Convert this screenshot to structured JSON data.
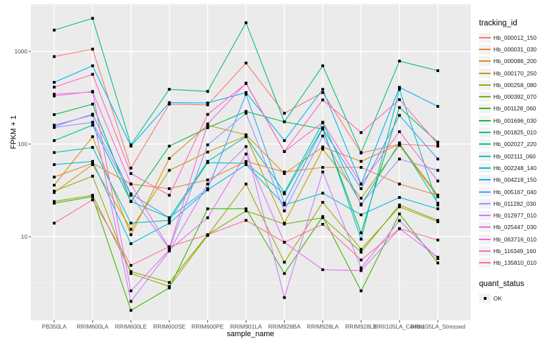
{
  "figure": {
    "background": "#ffffff",
    "panel_background": "#ebebeb",
    "grid_major_color": "#ffffff",
    "grid_minor_color": "#f5f5f5",
    "axis_text_color": "#4d4d4d",
    "point_color": "#000000"
  },
  "x_axis": {
    "label": "sample_name"
  },
  "y_axis": {
    "label": "FPKM + 1",
    "tick_labels": [
      "10",
      "100",
      "1000"
    ]
  },
  "legend": {
    "tracking_title": "tracking_id",
    "quant_title": "quant_status",
    "quant_items": [
      {
        "label": "OK",
        "marker": "square-point"
      }
    ]
  },
  "chart_data": {
    "type": "line",
    "title": "",
    "xlabel": "sample_name",
    "ylabel": "FPKM + 1",
    "y_scale": "log10",
    "ylim": [
      1.25,
      3200
    ],
    "y_major_ticks": [
      10,
      100,
      1000
    ],
    "y_minor_ticks": [
      3.162,
      31.62,
      316.2,
      3162
    ],
    "grid": true,
    "legend_position": "right",
    "markers": "black points at every sample (quant_status OK)",
    "categories": [
      "PB350LA",
      "RRIM600LA",
      "RRIM600LE",
      "RRIM600SE",
      "RRIM600PE",
      "RRIM901LA",
      "RRIM928BA",
      "RRIM928LA",
      "RRIM928LE",
      "RRII105LA_Control",
      "RRII105LA_Stressed"
    ],
    "series": [
      {
        "name": "Hb_000012_150",
        "color": "#F8766D",
        "values": [
          880,
          1060,
          55,
          270,
          265,
          750,
          215,
          360,
          80,
          100,
          95
        ]
      },
      {
        "name": "Hb_000031_030",
        "color": "#EA8331",
        "values": [
          44,
          62,
          37,
          33,
          41,
          65,
          50,
          56,
          56,
          37,
          28
        ]
      },
      {
        "name": "Hb_000086_200",
        "color": "#D89000",
        "values": [
          36,
          120,
          10.5,
          70,
          160,
          126,
          48,
          93,
          65,
          100,
          28
        ]
      },
      {
        "name": "Hb_000170_250",
        "color": "#C09B00",
        "values": [
          30,
          60,
          12,
          52,
          82,
          122,
          14,
          88,
          26,
          97,
          27
        ]
      },
      {
        "name": "Hb_000258_080",
        "color": "#A3A500",
        "values": [
          31,
          45,
          4,
          2.9,
          10.3,
          37,
          5.3,
          23.5,
          7.3,
          21,
          14.5
        ]
      },
      {
        "name": "Hb_000392_070",
        "color": "#7CAE00",
        "values": [
          24,
          28,
          4.2,
          3.2,
          10.5,
          19,
          13.7,
          16,
          6.8,
          22,
          15
        ]
      },
      {
        "name": "Hb_001128_060",
        "color": "#39B600",
        "values": [
          23,
          27,
          1.6,
          2.8,
          20,
          20,
          4,
          16.5,
          2.6,
          17.6,
          5.2
        ]
      },
      {
        "name": "Hb_001696_030",
        "color": "#00BB4E",
        "values": [
          208,
          270,
          24,
          95,
          150,
          225,
          174,
          145,
          11,
          248,
          105
        ]
      },
      {
        "name": "Hb_001825_010",
        "color": "#00BF7D",
        "values": [
          1700,
          2280,
          98,
          390,
          370,
          2040,
          174,
          700,
          81,
          787,
          620
        ]
      },
      {
        "name": "Hb_002027_220",
        "color": "#00C1A3",
        "values": [
          109,
          160,
          24,
          16,
          65,
          120,
          30,
          170,
          22,
          103,
          23
        ]
      },
      {
        "name": "Hb_002111_060",
        "color": "#00BFC4",
        "values": [
          81,
          92,
          14,
          15,
          63,
          62,
          29,
          150,
          9.4,
          390,
          22
        ]
      },
      {
        "name": "Hb_002248_140",
        "color": "#00BAE0",
        "values": [
          60,
          65,
          8.4,
          14,
          32,
          60,
          22,
          29.5,
          17.2,
          26.5,
          20
        ]
      },
      {
        "name": "Hb_004218_150",
        "color": "#00B0F6",
        "values": [
          464,
          700,
          95,
          280,
          278,
          360,
          109,
          390,
          37,
          410,
          255
        ]
      },
      {
        "name": "Hb_005167_040",
        "color": "#35A2FF",
        "values": [
          155,
          210,
          29,
          16,
          33,
          345,
          23,
          147,
          33,
          204,
          69
        ]
      },
      {
        "name": "Hb_011282_030",
        "color": "#9590FF",
        "values": [
          151,
          172,
          28,
          7.4,
          98,
          215,
          19,
          122,
          22.5,
          69,
          52
        ]
      },
      {
        "name": "Hb_012977_010",
        "color": "#C77CFF",
        "values": [
          160,
          205,
          2,
          7,
          37,
          94,
          2.2,
          50,
          4.6,
          14.9,
          5.8
        ]
      },
      {
        "name": "Hb_025447_030",
        "color": "#E76BF3",
        "values": [
          330,
          370,
          2.6,
          7.2,
          16,
          78,
          8.7,
          4.4,
          4.3,
          12.2,
          6
        ]
      },
      {
        "name": "Hb_063716_010",
        "color": "#FA62DB",
        "values": [
          345,
          365,
          37,
          7.5,
          165,
          455,
          83,
          172,
          37,
          136,
          40
        ]
      },
      {
        "name": "Hb_116349_160",
        "color": "#FF62BC",
        "values": [
          412,
          566,
          48,
          28,
          209,
          450,
          83,
          300,
          133,
          302,
          100
        ]
      },
      {
        "name": "Hb_135810_010",
        "color": "#FF6A98",
        "values": [
          14,
          25,
          4.9,
          7.8,
          10.5,
          15,
          8.7,
          13.6,
          5.6,
          12.2,
          9.2
        ]
      }
    ]
  }
}
